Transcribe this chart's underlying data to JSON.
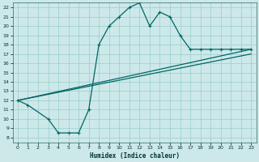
{
  "xlabel": "Humidex (Indice chaleur)",
  "bg_color": "#cce8e8",
  "grid_color": "#99cccc",
  "line_color": "#006666",
  "xlim": [
    -0.5,
    23.5
  ],
  "ylim": [
    7.5,
    22.5
  ],
  "xticks": [
    0,
    1,
    2,
    3,
    4,
    5,
    6,
    7,
    8,
    9,
    10,
    11,
    12,
    13,
    14,
    15,
    16,
    17,
    18,
    19,
    20,
    21,
    22,
    23
  ],
  "yticks": [
    8,
    9,
    10,
    11,
    12,
    13,
    14,
    15,
    16,
    17,
    18,
    19,
    20,
    21,
    22
  ],
  "line1_x": [
    0,
    1,
    3,
    4,
    5,
    6,
    7,
    8,
    9,
    10,
    11,
    12,
    13,
    14,
    15,
    16,
    17,
    18,
    19,
    20,
    21,
    22,
    23
  ],
  "line1_y": [
    12,
    11.5,
    10,
    8.5,
    8.5,
    8.5,
    11,
    18,
    20,
    21,
    22,
    22.5,
    20,
    21.5,
    21,
    19,
    17.5,
    17.5,
    17.5,
    17.5,
    17.5,
    17.5,
    17.5
  ],
  "line2_x": [
    0,
    23
  ],
  "line2_y": [
    12,
    17.5
  ],
  "line3_x": [
    0,
    23
  ],
  "line3_y": [
    12,
    17.0
  ]
}
